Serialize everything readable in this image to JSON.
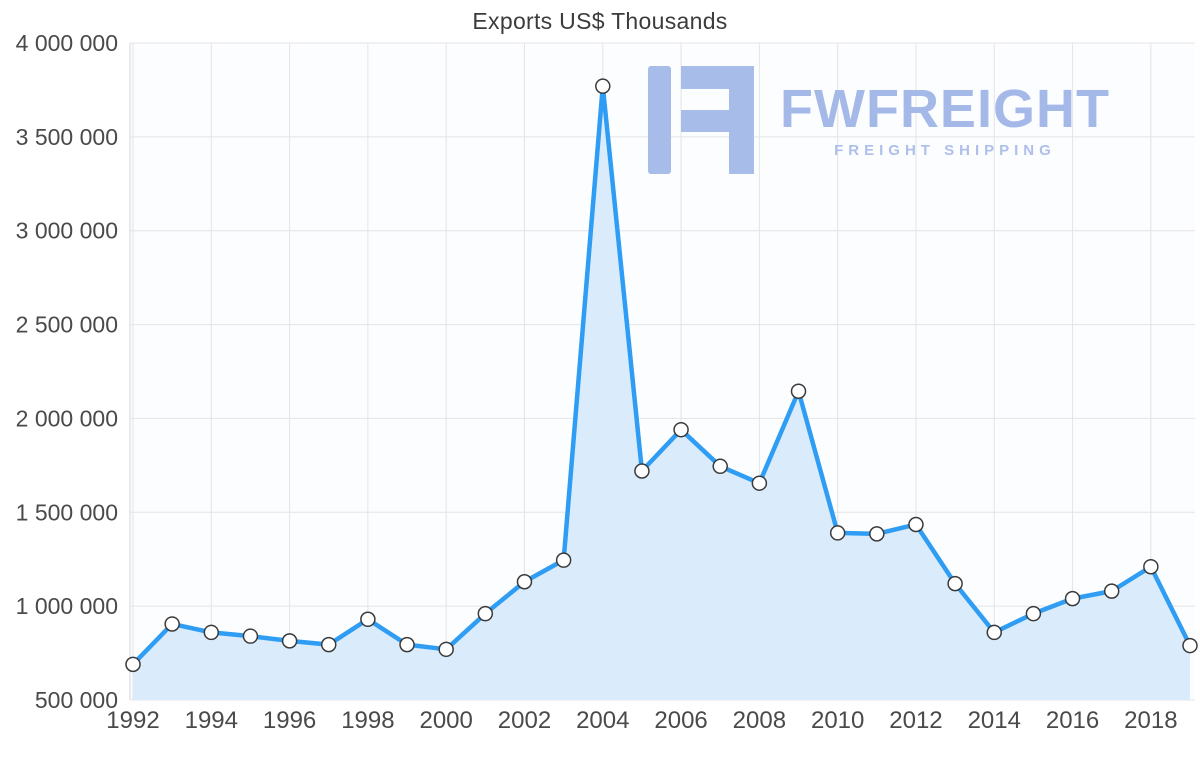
{
  "chart_data": {
    "type": "area",
    "title": "Exports US$ Thousands",
    "x": [
      1992,
      1993,
      1994,
      1995,
      1996,
      1997,
      1998,
      1999,
      2000,
      2001,
      2002,
      2003,
      2004,
      2005,
      2006,
      2007,
      2008,
      2009,
      2010,
      2011,
      2012,
      2013,
      2014,
      2015,
      2016,
      2017,
      2018,
      2019
    ],
    "values": [
      690000,
      905000,
      860000,
      840000,
      815000,
      795000,
      930000,
      795000,
      770000,
      960000,
      1130000,
      1245000,
      3770000,
      1720000,
      1940000,
      1745000,
      1655000,
      2145000,
      1390000,
      1385000,
      1435000,
      1120000,
      860000,
      960000,
      1040000,
      1080000,
      1210000,
      790000
    ],
    "ylim": [
      500000,
      4000000
    ],
    "ytick_values": [
      500000,
      1000000,
      1500000,
      2000000,
      2500000,
      3000000,
      3500000,
      4000000
    ],
    "ytick_labels": [
      "500 000",
      "1 000 000",
      "1 500 000",
      "2 000 000",
      "2 500 000",
      "3 000 000",
      "3 500 000",
      "4 000 000"
    ],
    "xticks": [
      1992,
      1994,
      1996,
      1998,
      2000,
      2002,
      2004,
      2006,
      2008,
      2010,
      2012,
      2014,
      2016,
      2018
    ],
    "xtick_labels": [
      "1992",
      "1994",
      "1996",
      "1998",
      "2000",
      "2002",
      "2004",
      "2006",
      "2008",
      "2010",
      "2012",
      "2014",
      "2016",
      "2018"
    ],
    "grid": true,
    "legend": "none",
    "line_color": "#2e9df3",
    "fill_color": "#daecfb",
    "plot_bg": "#fcfdff",
    "grid_color": "#e4e4e4",
    "axis_color": "#d6d6d6",
    "axis_text_color": "#4a4a4a",
    "marker_fill": "#ffffff",
    "marker_ring_color": "#3a3a3a"
  },
  "logo": {
    "name": "FWFREIGHT",
    "tagline": "FREIGHT SHIPPING",
    "color": "#a5b9e8"
  }
}
